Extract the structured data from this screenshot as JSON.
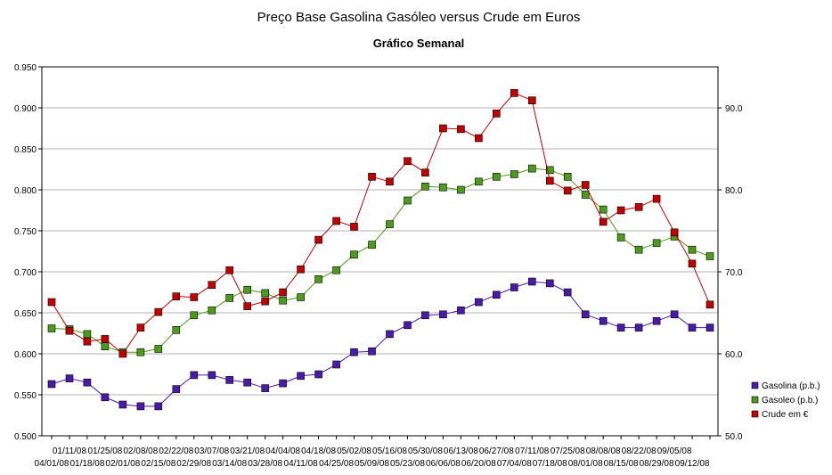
{
  "chart_data": {
    "type": "line",
    "title": "Preço Base Gasolina Gasóleo versus Crude em Euros",
    "subtitle": "Gráfico Semanal",
    "grid": "horizontal",
    "legend_position": "right",
    "y_left": {
      "min": 0.5,
      "max": 0.95,
      "step": 0.05,
      "ticks": [
        "0.500",
        "0.550",
        "0.600",
        "0.650",
        "0.700",
        "0.750",
        "0.800",
        "0.850",
        "0.900",
        "0.950"
      ]
    },
    "y_right": {
      "min": 50,
      "max": 95,
      "ticks": [
        "50.0",
        "60.0",
        "70.0",
        "80.0",
        "90.0"
      ],
      "tick_values": [
        50,
        60,
        70,
        80,
        90
      ]
    },
    "x_labels_top": [
      "01/11/08",
      "01/25/08",
      "02/08/08",
      "02/22/08",
      "03/07/08",
      "03/21/08",
      "04/04/08",
      "04/18/08",
      "05/02/08",
      "05/16/08",
      "05/30/08",
      "06/13/08",
      "06/27/08",
      "07/11/08",
      "07/25/08",
      "08/08/08",
      "08/22/08",
      "09/05/08"
    ],
    "x_labels_bottom": [
      "04/01/08",
      "01/18/08",
      "02/01/08",
      "02/15/08",
      "02/29/08",
      "03/14/08",
      "03/28/08",
      "04/11/08",
      "04/25/08",
      "05/09/08",
      "05/23/08",
      "06/06/08",
      "06/20/08",
      "07/04/08",
      "07/18/08",
      "08/01/08",
      "08/15/08",
      "08/29/08",
      "09/12/08"
    ],
    "series": [
      {
        "name": "Gasolina (p.b.)",
        "axis": "left",
        "color": "#4a1aa8",
        "values": [
          0.563,
          0.57,
          0.565,
          0.547,
          0.538,
          0.536,
          0.536,
          0.557,
          0.574,
          0.574,
          0.568,
          0.565,
          0.558,
          0.564,
          0.573,
          0.575,
          0.587,
          0.602,
          0.603,
          0.624,
          0.635,
          0.647,
          0.648,
          0.653,
          0.663,
          0.672,
          0.681,
          0.688,
          0.686,
          0.675,
          0.648,
          0.64,
          0.632,
          0.632,
          0.64,
          0.648,
          0.632,
          0.632
        ]
      },
      {
        "name": "Gasoleo (p.b.)",
        "axis": "left",
        "color": "#4e9a1c",
        "values": [
          0.631,
          0.63,
          0.624,
          0.609,
          0.602,
          0.602,
          0.606,
          0.629,
          0.647,
          0.653,
          0.668,
          0.678,
          0.674,
          0.665,
          0.669,
          0.691,
          0.702,
          0.721,
          0.733,
          0.758,
          0.787,
          0.804,
          0.803,
          0.8,
          0.81,
          0.816,
          0.819,
          0.826,
          0.824,
          0.816,
          0.794,
          0.776,
          0.742,
          0.727,
          0.735,
          0.743,
          0.727,
          0.719
        ]
      },
      {
        "name": "Crude em €",
        "axis": "right",
        "color": "#c00000",
        "values": [
          66.3,
          62.8,
          61.5,
          61.8,
          60.0,
          63.2,
          65.1,
          67.0,
          66.9,
          68.4,
          70.2,
          65.8,
          66.4,
          67.5,
          70.3,
          73.9,
          76.2,
          75.5,
          81.6,
          81.0,
          83.5,
          82.1,
          87.5,
          87.4,
          86.3,
          89.3,
          91.8,
          90.9,
          81.1,
          79.9,
          80.6,
          76.1,
          77.5,
          77.9,
          78.9,
          74.8,
          71.0,
          66.0
        ]
      }
    ]
  }
}
